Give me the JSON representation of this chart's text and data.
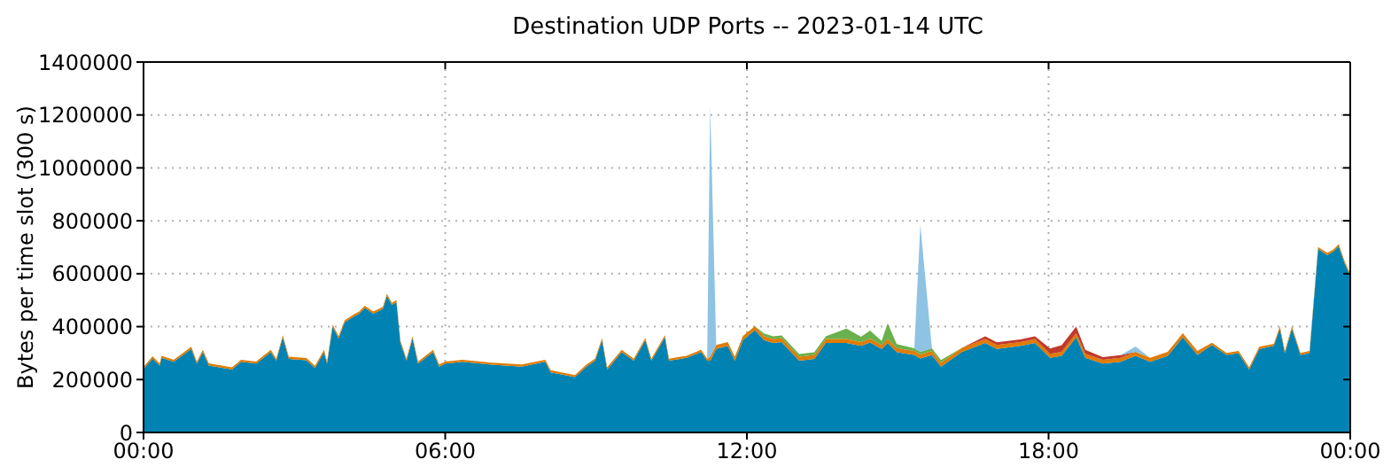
{
  "chart_data": {
    "type": "area",
    "title": "Destination UDP Ports -- 2023-01-14 UTC",
    "ylabel": "Bytes per time slot (300 s)",
    "stacked": true,
    "grid": true,
    "legend": false,
    "x": [
      0,
      0.18,
      0.32,
      0.36,
      0.6,
      0.95,
      1.06,
      1.18,
      1.3,
      1.76,
      1.94,
      2.24,
      2.53,
      2.64,
      2.77,
      2.89,
      3.24,
      3.41,
      3.59,
      3.65,
      3.76,
      3.88,
      4.0,
      4.18,
      4.29,
      4.4,
      4.57,
      4.76,
      4.84,
      4.94,
      5.03,
      5.11,
      5.23,
      5.35,
      5.46,
      5.76,
      5.88,
      6.0,
      6.34,
      6.93,
      7.52,
      7.99,
      8.1,
      8.58,
      8.81,
      8.98,
      9.12,
      9.22,
      9.51,
      9.75,
      9.98,
      10.1,
      10.37,
      10.45,
      10.8,
      11.09,
      11.21,
      11.27,
      11.39,
      11.62,
      11.76,
      11.92,
      12.16,
      12.34,
      12.52,
      12.69,
      13.04,
      13.34,
      13.57,
      13.98,
      14.27,
      14.45,
      14.68,
      14.8,
      14.98,
      15.33,
      15.45,
      15.68,
      15.86,
      16.27,
      16.74,
      16.97,
      17.44,
      17.73,
      18.03,
      18.26,
      18.55,
      18.73,
      19.08,
      19.43,
      19.73,
      20.02,
      20.37,
      20.67,
      20.96,
      21.25,
      21.54,
      21.78,
      21.99,
      22.19,
      22.48,
      22.6,
      22.7,
      22.84,
      23.01,
      23.19,
      23.36,
      23.54,
      23.66,
      23.77,
      23.89,
      24
    ],
    "xlim": [
      0,
      24
    ],
    "xticks": [
      {
        "value": 0,
        "label": "00:00"
      },
      {
        "value": 6,
        "label": "06:00"
      },
      {
        "value": 12,
        "label": "12:00"
      },
      {
        "value": 18,
        "label": "18:00"
      },
      {
        "value": 24,
        "label": "00:00"
      }
    ],
    "ylim": [
      0,
      1400000
    ],
    "yticks": [
      0,
      200000,
      400000,
      600000,
      800000,
      1000000,
      1200000,
      1400000
    ],
    "series": [
      {
        "color": "#0083b3",
        "values": [
          240000,
          280000,
          253000,
          282000,
          267000,
          316000,
          260000,
          304000,
          253000,
          238000,
          267000,
          260000,
          304000,
          271000,
          360000,
          278000,
          273000,
          244000,
          304000,
          260000,
          400000,
          356000,
          416000,
          438000,
          449000,
          471000,
          449000,
          467000,
          516000,
          482000,
          493000,
          338000,
          271000,
          356000,
          260000,
          304000,
          249000,
          260000,
          267000,
          256000,
          249000,
          267000,
          227000,
          209000,
          249000,
          271000,
          349000,
          238000,
          304000,
          271000,
          349000,
          271000,
          360000,
          271000,
          282000,
          304000,
          271000,
          271000,
          316000,
          327000,
          271000,
          349000,
          387000,
          349000,
          338000,
          342000,
          271000,
          278000,
          338000,
          338000,
          327000,
          340000,
          316000,
          338000,
          304000,
          293000,
          280000,
          293000,
          249000,
          304000,
          338000,
          316000,
          327000,
          338000,
          282000,
          290000,
          360000,
          282000,
          260000,
          267000,
          290000,
          267000,
          290000,
          360000,
          293000,
          331000,
          293000,
          300000,
          238000,
          316000,
          327000,
          393000,
          300000,
          393000,
          293000,
          300000,
          693000,
          671000,
          683000,
          704000,
          638000,
          593000
        ]
      },
      {
        "color": "#e07b00",
        "values": [
          8000,
          8000,
          8000,
          8000,
          8000,
          8000,
          8000,
          8000,
          8000,
          8000,
          8000,
          8000,
          8000,
          8000,
          8000,
          8000,
          8000,
          8000,
          8000,
          8000,
          8000,
          8000,
          8000,
          8000,
          8000,
          8000,
          8000,
          8000,
          8000,
          8000,
          8000,
          8000,
          8000,
          8000,
          8000,
          8000,
          8000,
          8000,
          8000,
          8000,
          8000,
          8000,
          8000,
          8000,
          8000,
          8000,
          8000,
          8000,
          8000,
          8000,
          8000,
          8000,
          8000,
          8000,
          8000,
          8000,
          8000,
          15000,
          15000,
          15000,
          15000,
          15000,
          15000,
          15000,
          15000,
          15000,
          15000,
          15000,
          15000,
          15000,
          15000,
          15000,
          15000,
          15000,
          15000,
          15000,
          15000,
          15000,
          15000,
          15000,
          15000,
          15000,
          15000,
          15000,
          15000,
          15000,
          15000,
          15000,
          15000,
          15000,
          15000,
          15000,
          15000,
          15000,
          15000,
          8000,
          8000,
          8000,
          8000,
          8000,
          8000,
          8000,
          8000,
          8000,
          8000,
          8000,
          8000,
          8000,
          8000,
          8000,
          8000,
          8000
        ]
      },
      {
        "color": "#c0392b",
        "values": [
          null,
          null,
          null,
          null,
          null,
          null,
          null,
          null,
          null,
          null,
          null,
          null,
          null,
          null,
          null,
          null,
          null,
          null,
          null,
          null,
          null,
          null,
          null,
          null,
          null,
          null,
          null,
          null,
          null,
          null,
          null,
          null,
          null,
          null,
          null,
          null,
          null,
          null,
          null,
          null,
          null,
          null,
          null,
          null,
          null,
          null,
          null,
          null,
          null,
          null,
          null,
          null,
          null,
          null,
          null,
          null,
          null,
          null,
          null,
          null,
          null,
          null,
          null,
          null,
          null,
          null,
          null,
          null,
          null,
          null,
          null,
          null,
          null,
          null,
          null,
          null,
          null,
          null,
          null,
          0,
          10000,
          10000,
          10000,
          10000,
          20000,
          25000,
          25000,
          15000,
          10000,
          10000,
          0,
          null,
          null,
          null,
          null,
          null,
          null,
          null,
          null,
          null,
          null,
          null,
          null,
          null,
          null,
          null,
          null,
          null,
          null,
          null,
          null,
          null
        ]
      },
      {
        "color": "#6ab04c",
        "values": [
          null,
          null,
          null,
          null,
          null,
          null,
          null,
          null,
          null,
          null,
          null,
          null,
          null,
          null,
          null,
          null,
          null,
          null,
          null,
          null,
          null,
          null,
          null,
          null,
          null,
          null,
          null,
          null,
          null,
          null,
          null,
          null,
          null,
          null,
          null,
          null,
          null,
          null,
          null,
          null,
          null,
          null,
          null,
          null,
          null,
          null,
          null,
          null,
          null,
          null,
          null,
          null,
          null,
          null,
          null,
          null,
          null,
          null,
          null,
          null,
          null,
          null,
          0,
          10000,
          10000,
          10000,
          10000,
          10000,
          10000,
          40000,
          20000,
          30000,
          15000,
          60000,
          15000,
          10000,
          10000,
          10000,
          10000,
          0,
          null,
          null,
          null,
          null,
          null,
          null,
          null,
          null,
          null,
          null,
          null,
          null,
          null,
          null,
          null,
          null,
          null,
          null,
          null,
          null,
          null,
          null,
          null,
          null,
          null,
          null,
          null,
          null,
          null,
          null,
          null,
          null
        ]
      },
      {
        "color": "#8fc3e3",
        "values": [
          null,
          null,
          null,
          null,
          null,
          null,
          null,
          null,
          null,
          null,
          null,
          null,
          null,
          null,
          null,
          null,
          null,
          null,
          null,
          null,
          null,
          null,
          null,
          null,
          null,
          null,
          null,
          null,
          null,
          null,
          null,
          null,
          null,
          null,
          null,
          null,
          null,
          null,
          null,
          null,
          null,
          null,
          null,
          null,
          null,
          null,
          null,
          null,
          null,
          null,
          null,
          null,
          null,
          null,
          null,
          null,
          0,
          950000,
          0,
          null,
          null,
          null,
          null,
          null,
          null,
          null,
          null,
          null,
          null,
          null,
          null,
          null,
          null,
          null,
          null,
          0,
          480000,
          0,
          null,
          null,
          null,
          null,
          null,
          null,
          null,
          null,
          null,
          null,
          null,
          0,
          20000,
          0,
          null,
          null,
          null,
          null,
          null,
          null,
          null,
          null,
          null,
          null,
          null,
          null,
          null,
          null,
          null,
          null,
          null,
          null,
          null,
          null
        ]
      }
    ]
  }
}
